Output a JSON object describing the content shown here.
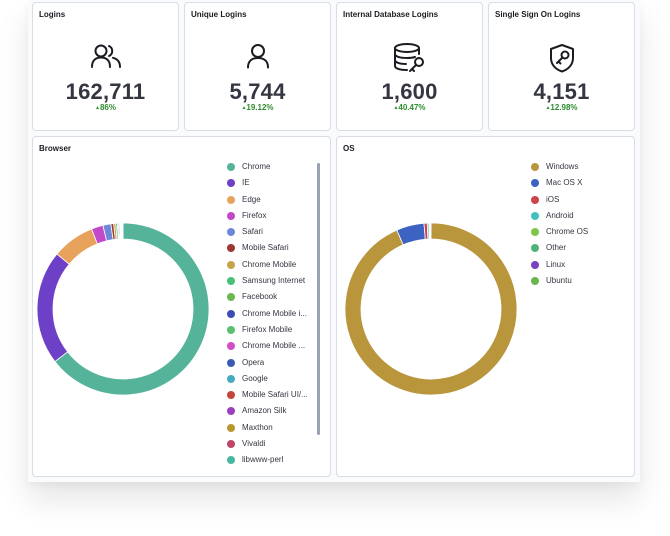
{
  "metrics": [
    {
      "title": "Logins",
      "value": "162,711",
      "change": "86%",
      "icon": "users-icon"
    },
    {
      "title": "Unique Logins",
      "value": "5,744",
      "change": "19.12%",
      "icon": "user-icon"
    },
    {
      "title": "Internal Database Logins",
      "value": "1,600",
      "change": "40.47%",
      "icon": "database-key-icon"
    },
    {
      "title": "Single Sign On Logins",
      "value": "4,151",
      "change": "12.98%",
      "icon": "shield-key-icon"
    }
  ],
  "change_arrow": "▲",
  "browser": {
    "title": "Browser",
    "legend": [
      {
        "label": "Chrome",
        "color": "#54B399"
      },
      {
        "label": "IE",
        "color": "#6E3FC7"
      },
      {
        "label": "Edge",
        "color": "#E7A35B"
      },
      {
        "label": "Firefox",
        "color": "#C249C7"
      },
      {
        "label": "Safari",
        "color": "#6F87D8"
      },
      {
        "label": "Mobile Safari",
        "color": "#9A3A2E"
      },
      {
        "label": "Chrome Mobile",
        "color": "#C9A34A"
      },
      {
        "label": "Samsung Internet",
        "color": "#4CBF76"
      },
      {
        "label": "Facebook",
        "color": "#6BB84E"
      },
      {
        "label": "Chrome Mobile i...",
        "color": "#3B4DB3"
      },
      {
        "label": "Firefox Mobile",
        "color": "#58C06E"
      },
      {
        "label": "Chrome Mobile ...",
        "color": "#D34FC3"
      },
      {
        "label": "Opera",
        "color": "#3A5BB5"
      },
      {
        "label": "Google",
        "color": "#44ABC0"
      },
      {
        "label": "Mobile Safari UI/...",
        "color": "#C4463A"
      },
      {
        "label": "Amazon Silk",
        "color": "#9C3FC1"
      },
      {
        "label": "Maxthon",
        "color": "#B7982E"
      },
      {
        "label": "Vivaldi",
        "color": "#C04567"
      },
      {
        "label": "libwww-perl",
        "color": "#44B8A0"
      }
    ]
  },
  "os": {
    "title": "OS",
    "legend": [
      {
        "label": "Windows",
        "color": "#B9953C"
      },
      {
        "label": "Mac OS X",
        "color": "#3D63C2"
      },
      {
        "label": "iOS",
        "color": "#D0414E"
      },
      {
        "label": "Android",
        "color": "#44BFC0"
      },
      {
        "label": "Chrome OS",
        "color": "#7FC44B"
      },
      {
        "label": "Other",
        "color": "#4CB575"
      },
      {
        "label": "Linux",
        "color": "#7A42C0"
      },
      {
        "label": "Ubuntu",
        "color": "#6BB44A"
      }
    ]
  },
  "chart_data": [
    {
      "type": "pie",
      "donut": true,
      "legend_position": "right",
      "categories": [
        "Chrome",
        "IE",
        "Edge",
        "Firefox",
        "Safari",
        "Mobile Safari",
        "Chrome Mobile",
        "Samsung Internet",
        "Facebook",
        "Chrome Mobile i...",
        "Firefox Mobile",
        "Chrome Mobile ...",
        "Opera",
        "Google",
        "Mobile Safari UI/...",
        "Amazon Silk",
        "Maxthon",
        "Vivaldi",
        "libwww-perl"
      ],
      "values": [
        64.5,
        21.5,
        8.0,
        2.2,
        1.5,
        0.5,
        0.4,
        0.3,
        0.2,
        0.2,
        0.15,
        0.1,
        0.1,
        0.1,
        0.05,
        0.05,
        0.05,
        0.03,
        0.02
      ],
      "colors": [
        "#54B399",
        "#6E3FC7",
        "#E7A35B",
        "#C249C7",
        "#6F87D8",
        "#9A3A2E",
        "#C9A34A",
        "#4CBF76",
        "#6BB84E",
        "#3B4DB3",
        "#58C06E",
        "#D34FC3",
        "#3A5BB5",
        "#44ABC0",
        "#C4463A",
        "#9C3FC1",
        "#B7982E",
        "#C04567",
        "#44B8A0"
      ]
    },
    {
      "type": "pie",
      "donut": true,
      "legend_position": "right",
      "categories": [
        "Windows",
        "Mac OS X",
        "iOS",
        "Android",
        "Chrome OS",
        "Other",
        "Linux",
        "Ubuntu"
      ],
      "values": [
        93.5,
        5.2,
        0.6,
        0.3,
        0.15,
        0.1,
        0.1,
        0.05
      ],
      "colors": [
        "#B9953C",
        "#3D63C2",
        "#D0414E",
        "#44BFC0",
        "#7FC44B",
        "#4CB575",
        "#7A42C0",
        "#6BB44A"
      ]
    }
  ]
}
